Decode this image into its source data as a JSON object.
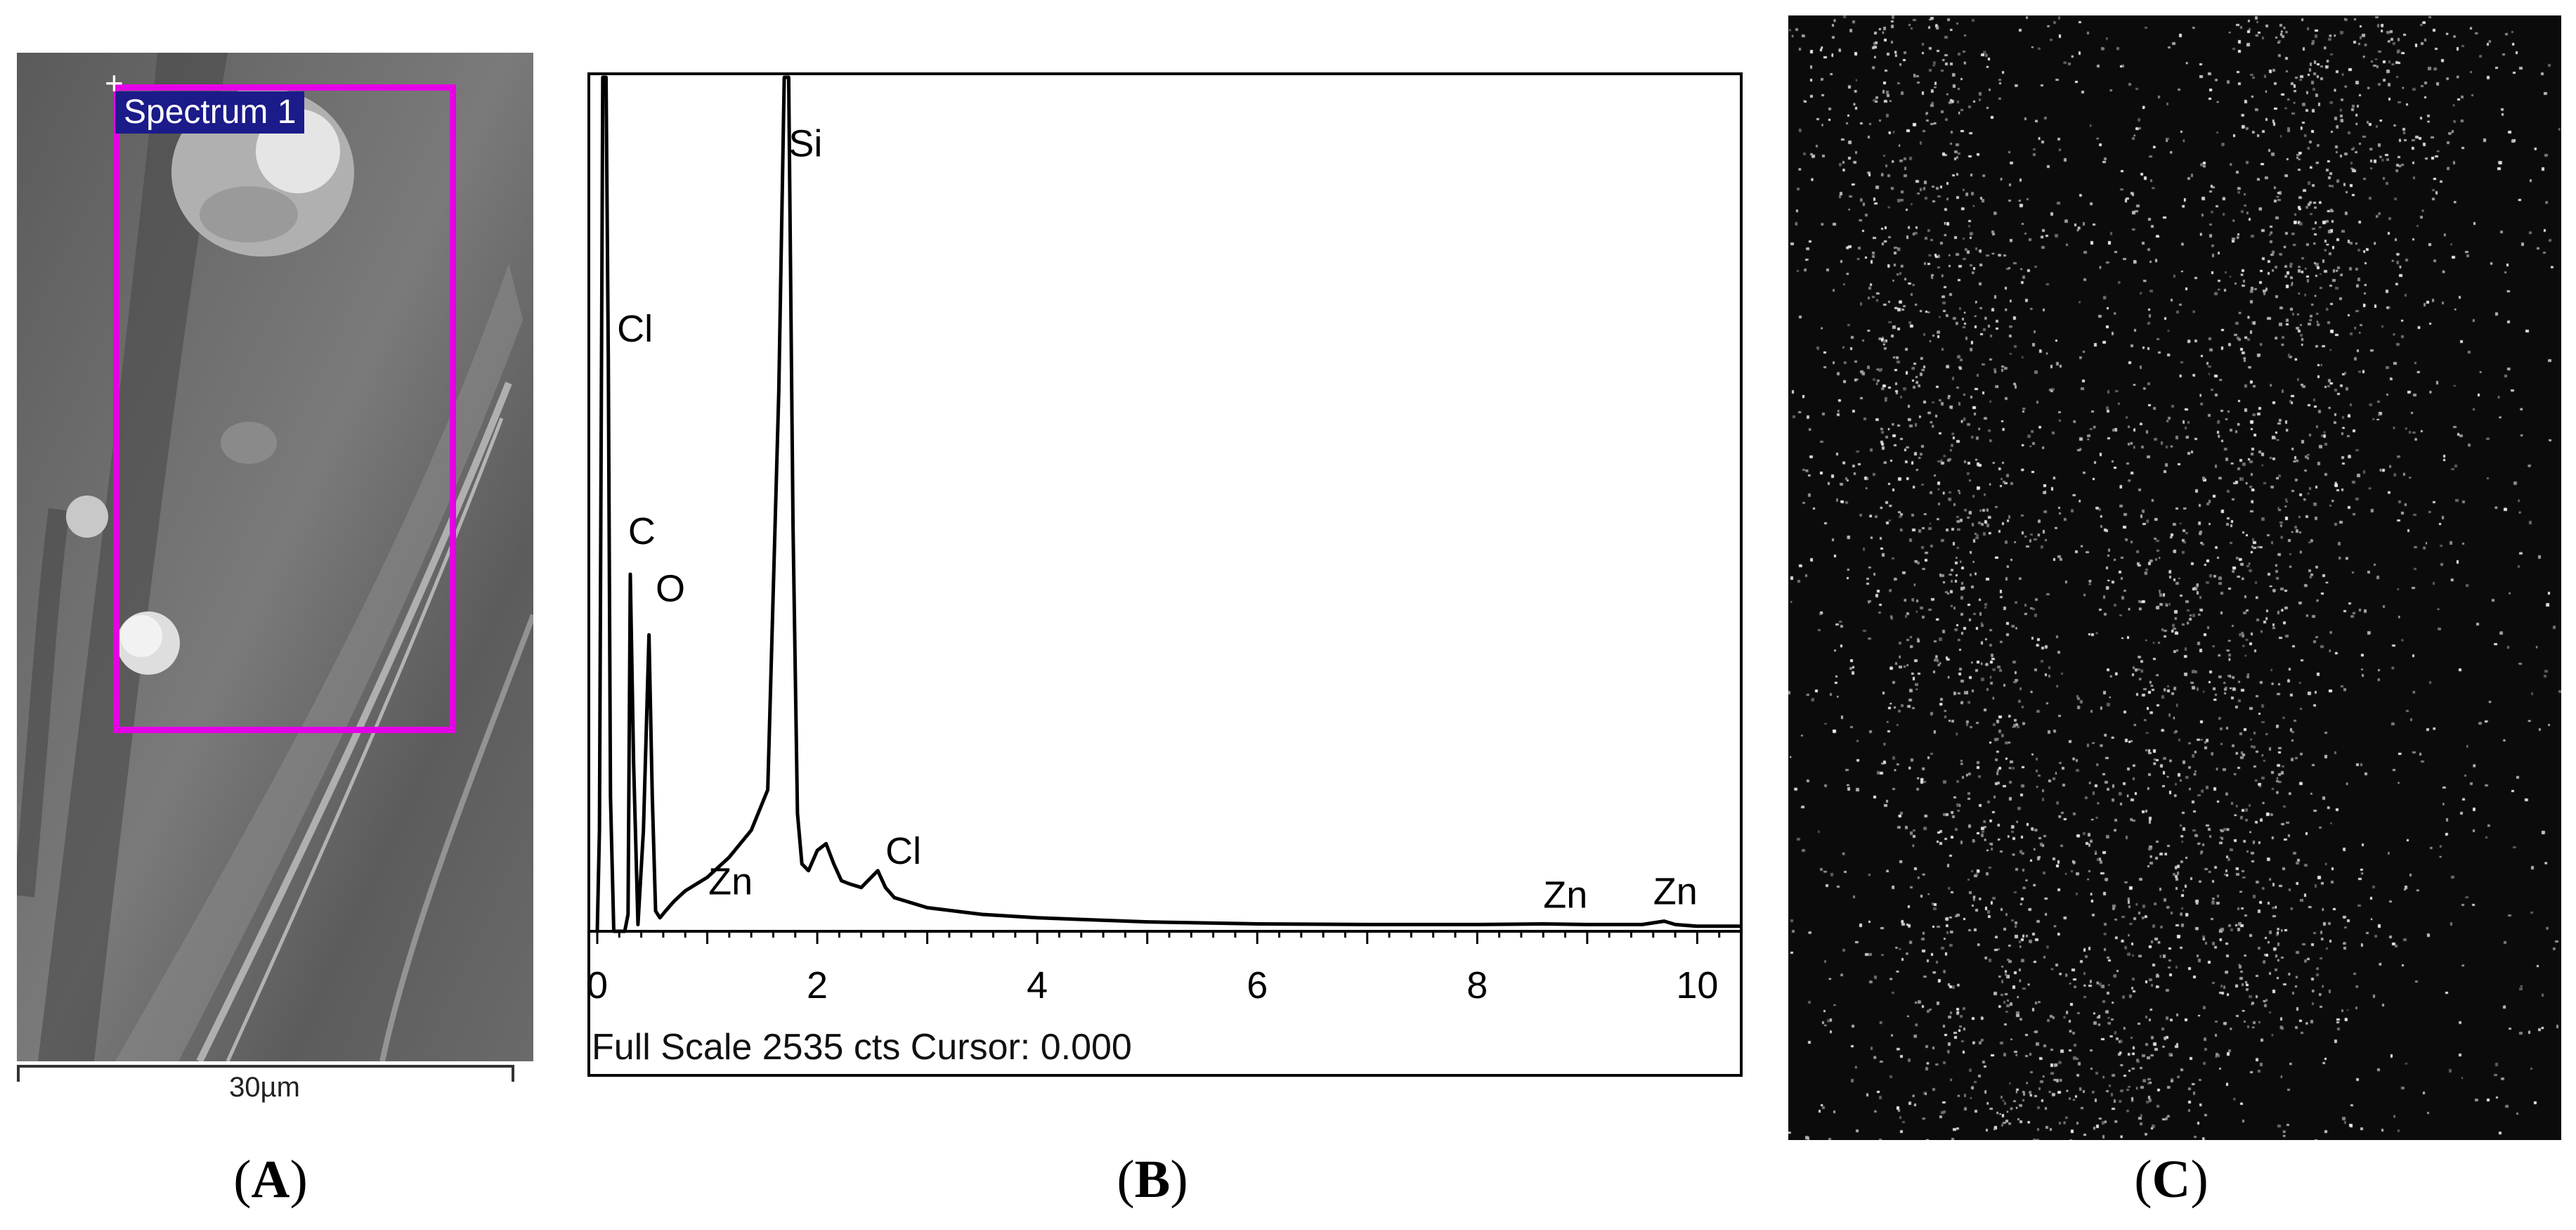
{
  "panel_a": {
    "spectrum_label": "Spectrum 1",
    "scale_label": "30µm",
    "caption_letter": "A"
  },
  "panel_b": {
    "footer": "Full Scale 2535 cts Cursor: 0.000",
    "caption_letter": "B"
  },
  "panel_c": {
    "caption_letter": "C"
  },
  "colors": {
    "selection_box": "#e600e6",
    "label_bg": "#1b1b8a",
    "spectrum_line": "#000000"
  },
  "chart_data": {
    "type": "line",
    "title": "",
    "xlabel": "",
    "ylabel": "",
    "xlim": [
      0,
      10.4
    ],
    "ylim": [
      0,
      2535
    ],
    "xticks": [
      0,
      2,
      4,
      6,
      8,
      10
    ],
    "grid": false,
    "series": [
      {
        "values_note": "",
        "x": [
          0,
          0.02,
          0.05,
          0.08,
          0.1,
          0.12,
          0.15,
          0.2,
          0.25,
          0.28,
          0.3,
          0.33,
          0.37,
          0.42,
          0.47,
          0.5,
          0.53,
          0.57,
          0.62,
          0.7,
          0.8,
          1.0,
          1.2,
          1.4,
          1.55,
          1.65,
          1.7,
          1.74,
          1.78,
          1.82,
          1.86,
          1.92,
          2.0,
          2.08,
          2.15,
          2.22,
          2.3,
          2.4,
          2.55,
          2.62,
          2.7,
          2.8,
          3.0,
          3.5,
          4.0,
          5.0,
          6.0,
          7.0,
          8.0,
          8.6,
          9.0,
          9.5,
          9.7,
          9.8,
          10.0,
          10.4
        ],
        "y": [
          0,
          300,
          2535,
          2535,
          1700,
          400,
          0,
          0,
          0,
          50,
          1060,
          500,
          20,
          300,
          880,
          400,
          60,
          40,
          60,
          90,
          120,
          160,
          220,
          300,
          420,
          1600,
          2535,
          2535,
          1200,
          350,
          200,
          180,
          240,
          260,
          200,
          150,
          140,
          130,
          180,
          130,
          100,
          90,
          70,
          50,
          40,
          28,
          22,
          20,
          20,
          22,
          20,
          20,
          30,
          20,
          15,
          15
        ]
      }
    ],
    "annotations": [
      {
        "text": "Cl",
        "x": 0.18,
        "y": 1750
      },
      {
        "text": "C",
        "x": 0.28,
        "y": 1150
      },
      {
        "text": "O",
        "x": 0.53,
        "y": 980
      },
      {
        "text": "Si",
        "x": 1.74,
        "y": 2300
      },
      {
        "text": "Zn",
        "x": 1.01,
        "y": 110
      },
      {
        "text": "Cl",
        "x": 2.62,
        "y": 200
      },
      {
        "text": "Zn",
        "x": 8.6,
        "y": 70
      },
      {
        "text": "Zn",
        "x": 9.6,
        "y": 80
      }
    ]
  }
}
